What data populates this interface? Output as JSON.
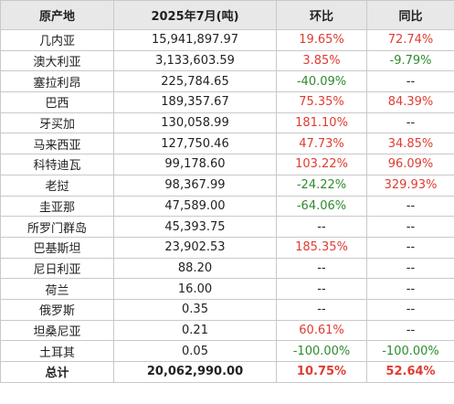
{
  "colors": {
    "header_bg": "#e8e8e8",
    "border": "#c9c9c9",
    "positive": "#e03c31",
    "negative": "#2e8b2e",
    "neutral": "#222222"
  },
  "table": {
    "headers": [
      "原产地",
      "2025年7月(吨)",
      "环比",
      "同比"
    ],
    "rows": [
      {
        "origin": "几内亚",
        "volume": "15,941,897.97",
        "mom": "19.65%",
        "mom_dir": "up",
        "yoy": "72.74%",
        "yoy_dir": "up"
      },
      {
        "origin": "澳大利亚",
        "volume": "3,133,603.59",
        "mom": "3.85%",
        "mom_dir": "up",
        "yoy": "-9.79%",
        "yoy_dir": "down"
      },
      {
        "origin": "塞拉利昂",
        "volume": "225,784.65",
        "mom": "-40.09%",
        "mom_dir": "down",
        "yoy": "--",
        "yoy_dir": "none"
      },
      {
        "origin": "巴西",
        "volume": "189,357.67",
        "mom": "75.35%",
        "mom_dir": "up",
        "yoy": "84.39%",
        "yoy_dir": "up"
      },
      {
        "origin": "牙买加",
        "volume": "130,058.99",
        "mom": "181.10%",
        "mom_dir": "up",
        "yoy": "--",
        "yoy_dir": "none"
      },
      {
        "origin": "马来西亚",
        "volume": "127,750.46",
        "mom": "47.73%",
        "mom_dir": "up",
        "yoy": "34.85%",
        "yoy_dir": "up"
      },
      {
        "origin": "科特迪瓦",
        "volume": "99,178.60",
        "mom": "103.22%",
        "mom_dir": "up",
        "yoy": "96.09%",
        "yoy_dir": "up"
      },
      {
        "origin": "老挝",
        "volume": "98,367.99",
        "mom": "-24.22%",
        "mom_dir": "down",
        "yoy": "329.93%",
        "yoy_dir": "up"
      },
      {
        "origin": "圭亚那",
        "volume": "47,589.00",
        "mom": "-64.06%",
        "mom_dir": "down",
        "yoy": "--",
        "yoy_dir": "none"
      },
      {
        "origin": "所罗门群岛",
        "volume": "45,393.75",
        "mom": "--",
        "mom_dir": "none",
        "yoy": "--",
        "yoy_dir": "none"
      },
      {
        "origin": "巴基斯坦",
        "volume": "23,902.53",
        "mom": "185.35%",
        "mom_dir": "up",
        "yoy": "--",
        "yoy_dir": "none"
      },
      {
        "origin": "尼日利亚",
        "volume": "88.20",
        "mom": "--",
        "mom_dir": "none",
        "yoy": "--",
        "yoy_dir": "none"
      },
      {
        "origin": "荷兰",
        "volume": "16.00",
        "mom": "--",
        "mom_dir": "none",
        "yoy": "--",
        "yoy_dir": "none"
      },
      {
        "origin": "俄罗斯",
        "volume": "0.35",
        "mom": "--",
        "mom_dir": "none",
        "yoy": "--",
        "yoy_dir": "none"
      },
      {
        "origin": "坦桑尼亚",
        "volume": "0.21",
        "mom": "60.61%",
        "mom_dir": "up",
        "yoy": "--",
        "yoy_dir": "none"
      },
      {
        "origin": "土耳其",
        "volume": "0.05",
        "mom": "-100.00%",
        "mom_dir": "down",
        "yoy": "-100.00%",
        "yoy_dir": "down"
      }
    ],
    "total": {
      "origin": "总计",
      "volume": "20,062,990.00",
      "mom": "10.75%",
      "mom_dir": "up",
      "yoy": "52.64%",
      "yoy_dir": "up"
    }
  }
}
